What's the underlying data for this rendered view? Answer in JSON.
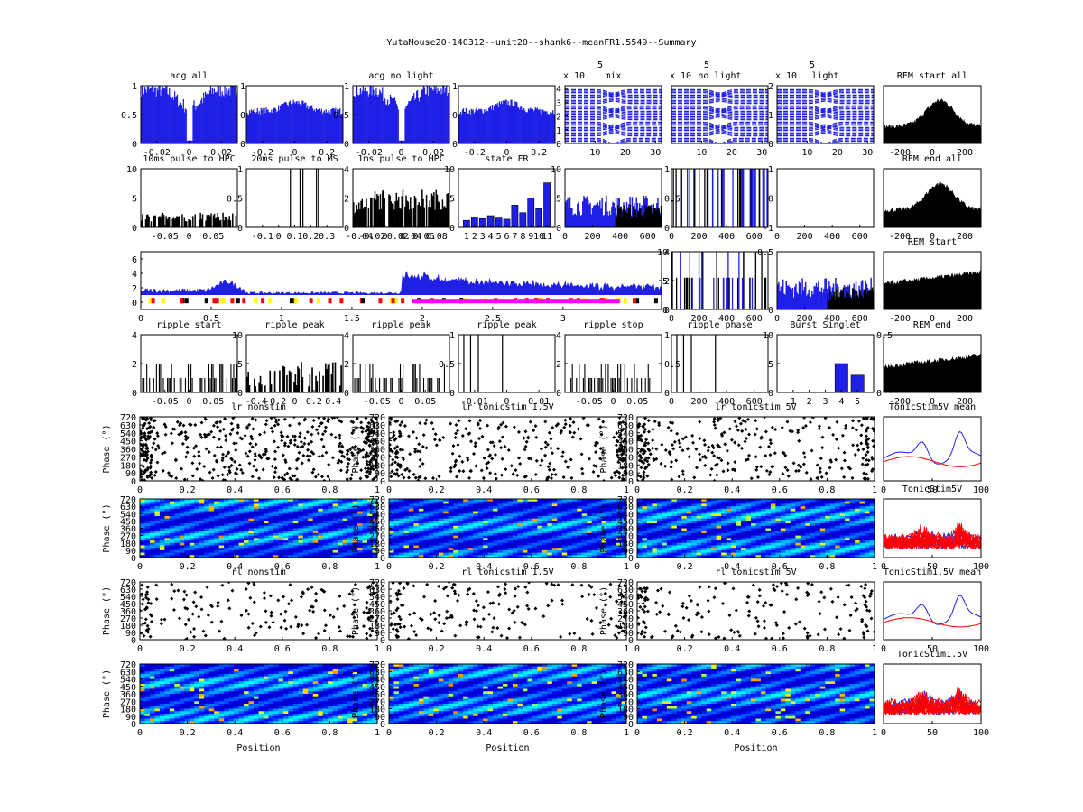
{
  "figure_title": "YutaMouse20-140312--unit20--shank6--meanFR1.5549--Summary",
  "colors": {
    "blue": "#1f1fe6",
    "black": "#000000",
    "red": "#ff0000",
    "magenta": "#ff00ff",
    "yellow": "#ffff00"
  },
  "chart_data": [
    {
      "type": "bar",
      "title": "acg all",
      "xlim": [
        -0.03,
        0.03
      ],
      "ylim": [
        0,
        1
      ],
      "xticks": [
        "-0.02",
        "0",
        "0.02"
      ],
      "yticks": [
        "0",
        "0.5",
        "1"
      ],
      "color": "blue",
      "fill": true,
      "pattern": "acg_dip",
      "right_axis": {
        "ylim": [
          0,
          1
        ],
        "yticks": [
          "0",
          "0.5",
          "1"
        ]
      }
    },
    {
      "type": "bar",
      "title": "",
      "xlim": [
        -0.3,
        0.3
      ],
      "ylim": [
        0,
        1
      ],
      "xticks": [
        "-0.2",
        "0",
        "0.2"
      ],
      "yticks": [],
      "color": "blue",
      "fill": true,
      "pattern": "acg_flat"
    },
    {
      "type": "bar",
      "title": "acg no light",
      "xlim": [
        -0.03,
        0.03
      ],
      "ylim": [
        0,
        1
      ],
      "xticks": [
        "-0.02",
        "0",
        "0.02"
      ],
      "yticks": [
        "0",
        "0.5",
        "1"
      ],
      "color": "blue",
      "fill": true,
      "pattern": "acg_dip",
      "right_axis": {
        "ylim": [
          0,
          1
        ],
        "yticks": [
          "0",
          "0.5",
          "1"
        ]
      }
    },
    {
      "type": "bar",
      "title": "",
      "xlim": [
        -0.3,
        0.3
      ],
      "ylim": [
        0,
        1
      ],
      "xticks": [
        "-0.2",
        "0",
        "0.2"
      ],
      "yticks": [],
      "color": "blue",
      "fill": true,
      "pattern": "acg_flat"
    },
    {
      "type": "line",
      "title": "mix",
      "exponent": "x 10",
      "exponent_power": "5",
      "xlim": [
        0,
        32
      ],
      "ylim": [
        0,
        4.2
      ],
      "xticks": [
        "10",
        "20",
        "30"
      ],
      "yticks": [
        "0",
        "1",
        "2",
        "3",
        "4"
      ],
      "color": "blue",
      "pattern": "waveforms"
    },
    {
      "type": "line",
      "title": "no light",
      "exponent": "x 10",
      "exponent_power": "5",
      "xlim": [
        0,
        32
      ],
      "ylim": [
        0,
        4.2
      ],
      "xticks": [
        "10",
        "20",
        "30"
      ],
      "yticks": [],
      "color": "blue",
      "pattern": "waveforms"
    },
    {
      "type": "line",
      "title": "light",
      "exponent": "x 10",
      "exponent_power": "5",
      "xlim": [
        0,
        32
      ],
      "ylim": [
        0,
        2
      ],
      "xticks": [
        "10",
        "20",
        "30"
      ],
      "yticks": [
        "0",
        "1",
        "2"
      ],
      "color": "blue",
      "pattern": "waveforms"
    },
    {
      "type": "area",
      "title": "REM start all",
      "xlim": [
        -300,
        300
      ],
      "ylim": [
        0,
        1
      ],
      "xticks": [
        "-200",
        "0",
        "200"
      ],
      "yticks": [],
      "color": "black",
      "fill": true,
      "pattern": "rem_peak"
    },
    {
      "type": "bar",
      "title": "10ms pulse to HPC",
      "xlim": [
        -0.1,
        0.1
      ],
      "ylim": [
        0,
        10
      ],
      "xticks": [
        "-0.05",
        "0",
        "0.05"
      ],
      "yticks": [
        "0",
        "5",
        "10"
      ],
      "color": "black",
      "fill": true,
      "pattern": "sparse_low"
    },
    {
      "type": "bar",
      "title": "20ms pulse to MS",
      "xlim": [
        -0.2,
        0.4
      ],
      "ylim": [
        0,
        1
      ],
      "xticks": [
        "-0.1",
        "0",
        "0.1",
        "0.2",
        "0.3"
      ],
      "yticks": [
        "0",
        "0.5",
        "1"
      ],
      "color": "black",
      "fill": false,
      "pattern": "lines"
    },
    {
      "type": "bar",
      "title": "1ms pulse to HPC",
      "xlim": [
        -0.05,
        0.1
      ],
      "ylim": [
        0,
        4
      ],
      "xticks": [
        "-0.04",
        "-0.02",
        "0",
        "0.02",
        "0.04",
        "0.06",
        "0.08"
      ],
      "yticks": [
        "0",
        "2",
        "4"
      ],
      "color": "black",
      "fill": true,
      "pattern": "dense_mid"
    },
    {
      "type": "bar",
      "title": "state FR",
      "xlim": [
        0,
        12
      ],
      "ylim": [
        0,
        10
      ],
      "xticks": [
        "1",
        "2",
        "3",
        "4",
        "5",
        "6",
        "7",
        "8",
        "9",
        "10",
        "11"
      ],
      "yticks": [
        "0",
        "5",
        "10"
      ],
      "color": "blue",
      "categories": [
        "1",
        "2",
        "3",
        "4",
        "5",
        "6",
        "7",
        "8",
        "9",
        "10",
        "11"
      ],
      "values": [
        1.2,
        1.8,
        1.5,
        2.0,
        1.6,
        1.4,
        3.8,
        2.5,
        5.0,
        3.2,
        7.6
      ]
    },
    {
      "type": "bar",
      "title": "",
      "xlim": [
        0,
        700
      ],
      "ylim": [
        0,
        10
      ],
      "xticks": [
        "0",
        "200",
        "400",
        "600"
      ],
      "yticks": [
        "0",
        "5",
        "10"
      ],
      "color": "blue",
      "fill": true,
      "pattern": "blue_black_split",
      "right_axis": {
        "ylim": [
          0,
          1
        ],
        "yticks": [
          "0",
          "0.5",
          "1"
        ]
      }
    },
    {
      "type": "bar",
      "title": "",
      "xlim": [
        0,
        700
      ],
      "ylim": [
        0,
        1
      ],
      "xticks": [
        "0",
        "200",
        "400",
        "600"
      ],
      "yticks": [],
      "color": "blue",
      "fill": false,
      "pattern": "bw_lines"
    },
    {
      "type": "line",
      "title": "",
      "xlim": [
        0,
        700
      ],
      "ylim": [
        -1,
        1
      ],
      "xticks": [
        "0",
        "200",
        "400",
        "600"
      ],
      "yticks": [
        "-1",
        "0",
        "1"
      ],
      "color": "blue",
      "pattern": "hline"
    },
    {
      "type": "area",
      "title": "REM end all",
      "xlim": [
        -300,
        300
      ],
      "ylim": [
        0,
        1
      ],
      "xticks": [
        "-200",
        "0",
        "200"
      ],
      "yticks": [],
      "color": "black",
      "fill": true,
      "pattern": "rem_peak"
    },
    {
      "type": "area",
      "title": "",
      "xlim": [
        0,
        3.7
      ],
      "ylim": [
        -1,
        7
      ],
      "xticks": [
        "0",
        "0.5",
        "1",
        "1.5",
        "2",
        "2.5",
        "3"
      ],
      "yticks": [
        "0",
        "2",
        "4",
        "6"
      ],
      "color": "blue",
      "fill": true,
      "pattern": "timeline",
      "right_axis": {
        "ylim": [
          0,
          4
        ],
        "yticks": [
          "0",
          "2",
          "4"
        ]
      }
    },
    {
      "type": "bar",
      "title": "",
      "xlim": [
        0,
        700
      ],
      "ylim": [
        0,
        10
      ],
      "xticks": [
        "0",
        "200",
        "400",
        "600"
      ],
      "yticks": [
        "0",
        "5",
        "10"
      ],
      "color": "blue",
      "fill": false,
      "pattern": "bw_lines_low"
    },
    {
      "type": "bar",
      "title": "",
      "xlim": [
        0,
        700
      ],
      "ylim": [
        0,
        0.5
      ],
      "xticks": [
        "0",
        "200",
        "400",
        "600"
      ],
      "yticks": [
        "0",
        "0.5"
      ],
      "color": "blue",
      "fill": true,
      "pattern": "blue_black_split"
    },
    {
      "type": "area",
      "title": "REM start",
      "xlim": [
        -300,
        300
      ],
      "ylim": [
        0,
        1
      ],
      "xticks": [
        "-200",
        "0",
        "200"
      ],
      "yticks": [],
      "color": "black",
      "fill": true,
      "pattern": "rem_flat"
    },
    {
      "type": "bar",
      "title": "ripple start",
      "xlim": [
        -0.1,
        0.1
      ],
      "ylim": [
        0,
        4
      ],
      "xticks": [
        "-0.05",
        "0",
        "0.05"
      ],
      "yticks": [
        "0",
        "2",
        "4"
      ],
      "color": "black",
      "fill": false,
      "pattern": "sparse_lines"
    },
    {
      "type": "bar",
      "title": "ripple peak",
      "xlim": [
        -0.5,
        0.5
      ],
      "ylim": [
        0,
        10
      ],
      "xticks": [
        "-0.4",
        "-0.2",
        "0",
        "0.2",
        "0.4"
      ],
      "yticks": [
        "0",
        "5",
        "10"
      ],
      "color": "black",
      "fill": true,
      "pattern": "sparse_mid"
    },
    {
      "type": "bar",
      "title": "ripple peak",
      "xlim": [
        -0.1,
        0.1
      ],
      "ylim": [
        0,
        4
      ],
      "xticks": [
        "-0.05",
        "0",
        "0.05"
      ],
      "yticks": [
        "0",
        "2",
        "4"
      ],
      "color": "black",
      "fill": false,
      "pattern": "sparse_lines"
    },
    {
      "type": "bar",
      "title": "ripple peak",
      "xlim": [
        -0.015,
        0.015
      ],
      "ylim": [
        0,
        1
      ],
      "xticks": [
        "-0.01",
        "0",
        "0.01"
      ],
      "yticks": [
        "0",
        "0.5",
        "1"
      ],
      "color": "black",
      "fill": false,
      "pattern": "few_lines"
    },
    {
      "type": "bar",
      "title": "ripple stop",
      "xlim": [
        -0.1,
        0.1
      ],
      "ylim": [
        0,
        4
      ],
      "xticks": [
        "-0.05",
        "0",
        "0.05"
      ],
      "yticks": [
        "0",
        "2",
        "4"
      ],
      "color": "black",
      "fill": false,
      "pattern": "sparse_lines",
      "right_axis": {
        "ylim": [
          0,
          1
        ],
        "yticks": [
          "0",
          "0.5",
          "1"
        ]
      }
    },
    {
      "type": "bar",
      "title": "ripple phase",
      "xlim": [
        0,
        700
      ],
      "ylim": [
        0,
        1
      ],
      "xticks": [
        "0",
        "200",
        "400",
        "600"
      ],
      "yticks": [],
      "color": "black",
      "fill": false,
      "pattern": "few_lines"
    },
    {
      "type": "bar",
      "title": "Burst Singlet",
      "xlim": [
        0,
        6
      ],
      "ylim": [
        0,
        10
      ],
      "xticks": [
        "1",
        "2",
        "3",
        "4",
        "5"
      ],
      "yticks": [
        "0",
        "5",
        "10"
      ],
      "color": "blue",
      "categories": [
        "1",
        "2",
        "3",
        "4",
        "5"
      ],
      "values": [
        0.1,
        0,
        0,
        5,
        3
      ],
      "right_axis": {
        "ylim": [
          0,
          0.5
        ],
        "yticks": [
          "0",
          "0.5"
        ]
      }
    },
    {
      "type": "area",
      "title": "REM end",
      "xlim": [
        -300,
        300
      ],
      "ylim": [
        0,
        1
      ],
      "xticks": [
        "-200",
        "0",
        "200"
      ],
      "yticks": [],
      "color": "black",
      "fill": true,
      "pattern": "rem_flat"
    },
    {
      "type": "scatter",
      "title": "lr nonstim",
      "ylabel": "Phase (°)",
      "xlim": [
        0,
        1
      ],
      "ylim": [
        0,
        720
      ],
      "xticks": [
        "0",
        "0.2",
        "0.4",
        "0.6",
        "0.8",
        "1"
      ],
      "yticks": [
        "0",
        "90",
        "180",
        "270",
        "360",
        "450",
        "540",
        "630",
        "720"
      ],
      "pattern": "dense"
    },
    {
      "type": "scatter",
      "title": "lr tonicstim 1.5V",
      "ylabel": "Phase (°)",
      "xlim": [
        0,
        1
      ],
      "ylim": [
        0,
        720
      ],
      "xticks": [
        "0",
        "0.2",
        "0.4",
        "0.6",
        "0.8",
        "1"
      ],
      "yticks": [
        "0",
        "90",
        "180",
        "270",
        "360",
        "450",
        "540",
        "630",
        "720"
      ],
      "pattern": "medium"
    },
    {
      "type": "scatter",
      "title": "lr tonicstim 5V",
      "ylabel": "Phase (°)",
      "xlim": [
        0,
        1
      ],
      "ylim": [
        0,
        720
      ],
      "xticks": [
        "0",
        "0.2",
        "0.4",
        "0.6",
        "0.8",
        "1"
      ],
      "yticks": [
        "0",
        "90",
        "180",
        "270",
        "360",
        "450",
        "540",
        "630",
        "720"
      ],
      "pattern": "medium"
    },
    {
      "type": "line",
      "title": "TonicStim5V mean",
      "xlim": [
        0,
        100
      ],
      "ylim": [
        0,
        1
      ],
      "xticks": [
        "0",
        "50",
        "100"
      ],
      "yticks": [],
      "pattern": "mean_lines"
    },
    {
      "type": "heatmap",
      "title": "",
      "ylabel": "Phase (°)",
      "xlim": [
        0,
        1
      ],
      "ylim": [
        0,
        720
      ],
      "xticks": [
        "0",
        "0.2",
        "0.4",
        "0.6",
        "0.8",
        "1"
      ],
      "yticks": [
        "0",
        "90",
        "180",
        "270",
        "360",
        "450",
        "540",
        "630",
        "720"
      ]
    },
    {
      "type": "heatmap",
      "title": "",
      "ylabel": "Phase (°)",
      "xlim": [
        0,
        1
      ],
      "ylim": [
        0,
        720
      ],
      "xticks": [
        "0",
        "0.2",
        "0.4",
        "0.6",
        "0.8",
        "1"
      ],
      "yticks": [
        "0",
        "90",
        "180",
        "270",
        "360",
        "450",
        "540",
        "630",
        "720"
      ]
    },
    {
      "type": "heatmap",
      "title": "",
      "ylabel": "Phase (°)",
      "xlim": [
        0,
        1
      ],
      "ylim": [
        0,
        720
      ],
      "xticks": [
        "0",
        "0.2",
        "0.4",
        "0.6",
        "0.8",
        "1"
      ],
      "yticks": [
        "0",
        "90",
        "180",
        "270",
        "360",
        "450",
        "540",
        "630",
        "720"
      ]
    },
    {
      "type": "line",
      "title": "TonicStim5V",
      "xlim": [
        0,
        100
      ],
      "ylim": [
        0,
        1
      ],
      "xticks": [
        "0",
        "50",
        "100"
      ],
      "yticks": [],
      "pattern": "many_lines"
    },
    {
      "type": "scatter",
      "title": "rl nonstim",
      "ylabel": "Phase (°)",
      "xlim": [
        0,
        1
      ],
      "ylim": [
        0,
        720
      ],
      "xticks": [
        "0",
        "0.2",
        "0.4",
        "0.6",
        "0.8",
        "1"
      ],
      "yticks": [
        "0",
        "90",
        "180",
        "270",
        "360",
        "450",
        "540",
        "630",
        "720"
      ],
      "pattern": "sparse"
    },
    {
      "type": "scatter",
      "title": "rl tonicstim 1.5V",
      "ylabel": "Phase (°)",
      "xlim": [
        0,
        1
      ],
      "ylim": [
        0,
        720
      ],
      "xticks": [
        "0",
        "0.2",
        "0.4",
        "0.6",
        "0.8",
        "1"
      ],
      "yticks": [
        "0",
        "90",
        "180",
        "270",
        "360",
        "450",
        "540",
        "630",
        "720"
      ],
      "pattern": "sparse"
    },
    {
      "type": "scatter",
      "title": "rl tonicstim 5V",
      "ylabel": "Phase (°)",
      "xlim": [
        0,
        1
      ],
      "ylim": [
        0,
        720
      ],
      "xticks": [
        "0",
        "0.2",
        "0.4",
        "0.6",
        "0.8",
        "1"
      ],
      "yticks": [
        "0",
        "90",
        "180",
        "270",
        "360",
        "450",
        "540",
        "630",
        "720"
      ],
      "pattern": "sparse"
    },
    {
      "type": "line",
      "title": "TonicStim1.5V mean",
      "xlim": [
        0,
        100
      ],
      "ylim": [
        0,
        1
      ],
      "xticks": [
        "0",
        "50",
        "100"
      ],
      "yticks": [],
      "pattern": "mean_lines"
    },
    {
      "type": "heatmap",
      "title": "",
      "ylabel": "Phase (°)",
      "xlabel": "Position",
      "xlim": [
        0,
        1
      ],
      "ylim": [
        0,
        720
      ],
      "xticks": [
        "0",
        "0.2",
        "0.4",
        "0.6",
        "0.8",
        "1"
      ],
      "yticks": [
        "0",
        "90",
        "180",
        "270",
        "360",
        "450",
        "540",
        "630",
        "720"
      ]
    },
    {
      "type": "heatmap",
      "title": "",
      "ylabel": "Phase (°)",
      "xlabel": "Position",
      "xlim": [
        0,
        1
      ],
      "ylim": [
        0,
        720
      ],
      "xticks": [
        "0",
        "0.2",
        "0.4",
        "0.6",
        "0.8",
        "1"
      ],
      "yticks": [
        "0",
        "90",
        "180",
        "270",
        "360",
        "450",
        "540",
        "630",
        "720"
      ]
    },
    {
      "type": "heatmap",
      "title": "",
      "ylabel": "Phase (°)",
      "xlabel": "Position",
      "xlim": [
        0,
        1
      ],
      "ylim": [
        0,
        720
      ],
      "xticks": [
        "0",
        "0.2",
        "0.4",
        "0.6",
        "0.8",
        "1"
      ],
      "yticks": [
        "0",
        "90",
        "180",
        "270",
        "360",
        "450",
        "540",
        "630",
        "720"
      ]
    },
    {
      "type": "line",
      "title": "TonicStim1.5V",
      "xlim": [
        0,
        100
      ],
      "ylim": [
        0,
        1
      ],
      "xticks": [
        "0",
        "50",
        "100"
      ],
      "yticks": [],
      "pattern": "many_lines"
    }
  ]
}
